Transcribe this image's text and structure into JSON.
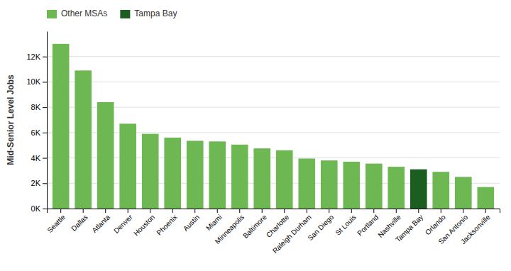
{
  "chart_data": {
    "type": "bar",
    "ylabel": "Mid-Senior Level Jobs",
    "categories": [
      "Seattle",
      "Dallas",
      "Atlanta",
      "Denver",
      "Houston",
      "Phoenix",
      "Austin",
      "Miami",
      "Minneapolis",
      "Baltimore",
      "Charlotte",
      "Raleigh Durham",
      "San Diego",
      "St Louis",
      "Portland",
      "Nashville",
      "Tampa Bay",
      "Orlando",
      "San Antonio",
      "Jacksonville"
    ],
    "series": [
      {
        "name": "Other MSAs",
        "color": "#6EB854",
        "values": [
          13000,
          10900,
          8400,
          6700,
          5900,
          5600,
          5350,
          5300,
          5050,
          4750,
          4600,
          3950,
          3800,
          3700,
          3550,
          3300,
          null,
          2900,
          2500,
          1700
        ]
      },
      {
        "name": "Tampa Bay",
        "color": "#1B5E20",
        "values": [
          null,
          null,
          null,
          null,
          null,
          null,
          null,
          null,
          null,
          null,
          null,
          null,
          null,
          null,
          null,
          null,
          3100,
          null,
          null,
          null
        ]
      }
    ],
    "stacked": true,
    "ylim": [
      0,
      14000
    ],
    "yticks": [
      {
        "value": 0,
        "label": "0K"
      },
      {
        "value": 2000,
        "label": "2K"
      },
      {
        "value": 4000,
        "label": "4K"
      },
      {
        "value": 6000,
        "label": "6K"
      },
      {
        "value": 8000,
        "label": "8K"
      },
      {
        "value": 10000,
        "label": "10K"
      },
      {
        "value": 12000,
        "label": "12K"
      }
    ],
    "grid": true,
    "legend": "top-left"
  }
}
